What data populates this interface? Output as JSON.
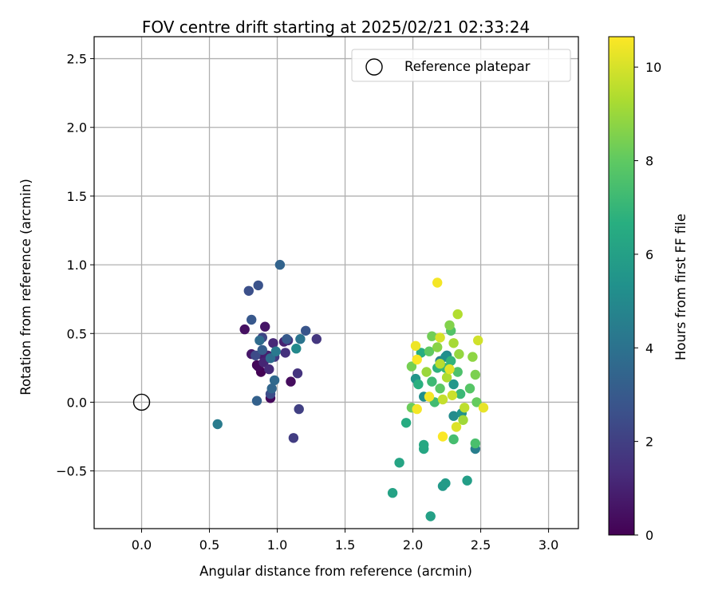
{
  "chart_data": {
    "type": "scatter",
    "title": "FOV centre drift starting at 2025/02/21 02:33:24",
    "xlabel": "Angular distance from reference (arcmin)",
    "ylabel": "Rotation from reference (arcmin)",
    "xlim": [
      -0.35,
      3.22
    ],
    "ylim": [
      -0.92,
      2.66
    ],
    "xticks": [
      "0.0",
      "0.5",
      "1.0",
      "1.5",
      "2.0",
      "2.5",
      "3.0"
    ],
    "yticks": [
      "−0.5",
      "0.0",
      "0.5",
      "1.0",
      "1.5",
      "2.0",
      "2.5"
    ],
    "grid": true,
    "legend": {
      "entries": [
        "Reference platepar"
      ],
      "placement": "top-right"
    },
    "colorbar": {
      "label": "Hours from first FF file",
      "range": [
        0,
        10.65
      ],
      "ticks": [
        "0",
        "2",
        "4",
        "6",
        "8",
        "10"
      ],
      "colormap": "viridis"
    },
    "reference_point": {
      "x": 0.0,
      "y": 0.0
    },
    "points": [
      {
        "x": 0.88,
        "y": 0.22,
        "h": 0.05
      },
      {
        "x": 0.85,
        "y": 0.27,
        "h": 0.1
      },
      {
        "x": 0.86,
        "y": 0.26,
        "h": 0.2
      },
      {
        "x": 0.95,
        "y": 0.03,
        "h": 0.25
      },
      {
        "x": 1.1,
        "y": 0.15,
        "h": 0.35
      },
      {
        "x": 0.76,
        "y": 0.53,
        "h": 0.45
      },
      {
        "x": 0.91,
        "y": 0.55,
        "h": 0.6
      },
      {
        "x": 0.81,
        "y": 0.35,
        "h": 0.7
      },
      {
        "x": 0.88,
        "y": 0.35,
        "h": 0.8
      },
      {
        "x": 0.93,
        "y": 0.34,
        "h": 0.9
      },
      {
        "x": 1.05,
        "y": 0.44,
        "h": 1.0
      },
      {
        "x": 0.9,
        "y": 0.29,
        "h": 1.1
      },
      {
        "x": 0.97,
        "y": 0.43,
        "h": 1.2
      },
      {
        "x": 0.94,
        "y": 0.24,
        "h": 1.3
      },
      {
        "x": 1.08,
        "y": 0.45,
        "h": 1.4
      },
      {
        "x": 1.06,
        "y": 0.36,
        "h": 1.5
      },
      {
        "x": 1.15,
        "y": 0.21,
        "h": 1.6
      },
      {
        "x": 1.29,
        "y": 0.46,
        "h": 1.7
      },
      {
        "x": 0.98,
        "y": 0.33,
        "h": 1.8
      },
      {
        "x": 1.12,
        "y": -0.26,
        "h": 1.9
      },
      {
        "x": 1.16,
        "y": -0.05,
        "h": 2.0
      },
      {
        "x": 0.89,
        "y": 0.47,
        "h": 2.2
      },
      {
        "x": 0.84,
        "y": 0.34,
        "h": 2.4
      },
      {
        "x": 0.95,
        "y": 0.06,
        "h": 2.5
      },
      {
        "x": 0.79,
        "y": 0.81,
        "h": 2.6
      },
      {
        "x": 0.86,
        "y": 0.85,
        "h": 2.7
      },
      {
        "x": 1.21,
        "y": 0.52,
        "h": 2.8
      },
      {
        "x": 0.81,
        "y": 0.6,
        "h": 2.9
      },
      {
        "x": 1.07,
        "y": 0.46,
        "h": 3.0
      },
      {
        "x": 0.89,
        "y": 0.38,
        "h": 3.1
      },
      {
        "x": 0.85,
        "y": 0.01,
        "h": 3.3
      },
      {
        "x": 1.02,
        "y": 1.0,
        "h": 3.4
      },
      {
        "x": 0.96,
        "y": 0.1,
        "h": 3.5
      },
      {
        "x": 0.98,
        "y": 0.16,
        "h": 3.6
      },
      {
        "x": 0.87,
        "y": 0.45,
        "h": 3.7
      },
      {
        "x": 0.95,
        "y": 0.32,
        "h": 3.8
      },
      {
        "x": 1.17,
        "y": 0.46,
        "h": 4.1
      },
      {
        "x": 0.99,
        "y": 0.37,
        "h": 4.3
      },
      {
        "x": 0.56,
        "y": -0.16,
        "h": 4.4
      },
      {
        "x": 2.46,
        "y": -0.34,
        "h": 4.5
      },
      {
        "x": 2.2,
        "y": 0.3,
        "h": 4.7
      },
      {
        "x": 2.25,
        "y": 0.34,
        "h": 4.9
      },
      {
        "x": 1.14,
        "y": 0.39,
        "h": 5.0
      },
      {
        "x": 2.3,
        "y": -0.1,
        "h": 5.1
      },
      {
        "x": 2.08,
        "y": 0.04,
        "h": 5.2
      },
      {
        "x": 2.24,
        "y": 0.33,
        "h": 5.3
      },
      {
        "x": 2.36,
        "y": -0.08,
        "h": 5.4
      },
      {
        "x": 2.02,
        "y": 0.17,
        "h": 5.5
      },
      {
        "x": 2.3,
        "y": 0.13,
        "h": 5.6
      },
      {
        "x": 2.22,
        "y": -0.61,
        "h": 5.7
      },
      {
        "x": 2.24,
        "y": -0.59,
        "h": 5.8
      },
      {
        "x": 2.4,
        "y": -0.57,
        "h": 5.9
      },
      {
        "x": 2.13,
        "y": -0.83,
        "h": 6.0
      },
      {
        "x": 1.85,
        "y": -0.66,
        "h": 6.1
      },
      {
        "x": 1.9,
        "y": -0.44,
        "h": 6.2
      },
      {
        "x": 2.08,
        "y": -0.34,
        "h": 6.3
      },
      {
        "x": 2.08,
        "y": -0.31,
        "h": 6.4
      },
      {
        "x": 1.95,
        "y": -0.15,
        "h": 6.5
      },
      {
        "x": 2.06,
        "y": 0.36,
        "h": 6.6
      },
      {
        "x": 2.04,
        "y": 0.13,
        "h": 6.7
      },
      {
        "x": 2.18,
        "y": 0.25,
        "h": 6.8
      },
      {
        "x": 2.28,
        "y": 0.3,
        "h": 6.9
      },
      {
        "x": 2.24,
        "y": 0.25,
        "h": 7.0
      },
      {
        "x": 2.35,
        "y": 0.06,
        "h": 7.1
      },
      {
        "x": 2.14,
        "y": 0.15,
        "h": 7.2
      },
      {
        "x": 2.16,
        "y": 0.0,
        "h": 7.3
      },
      {
        "x": 2.3,
        "y": -0.27,
        "h": 7.4
      },
      {
        "x": 2.46,
        "y": -0.3,
        "h": 7.5
      },
      {
        "x": 2.33,
        "y": 0.22,
        "h": 7.6
      },
      {
        "x": 2.28,
        "y": 0.52,
        "h": 7.7
      },
      {
        "x": 2.42,
        "y": 0.1,
        "h": 7.8
      },
      {
        "x": 2.2,
        "y": 0.1,
        "h": 7.9
      },
      {
        "x": 2.12,
        "y": 0.37,
        "h": 8.0
      },
      {
        "x": 2.47,
        "y": 0.0,
        "h": 8.1
      },
      {
        "x": 1.99,
        "y": -0.04,
        "h": 8.2
      },
      {
        "x": 2.14,
        "y": 0.48,
        "h": 8.3
      },
      {
        "x": 1.99,
        "y": 0.26,
        "h": 8.4
      },
      {
        "x": 2.46,
        "y": 0.2,
        "h": 8.5
      },
      {
        "x": 2.27,
        "y": 0.56,
        "h": 8.6
      },
      {
        "x": 2.18,
        "y": 0.4,
        "h": 8.7
      },
      {
        "x": 2.44,
        "y": 0.33,
        "h": 8.8
      },
      {
        "x": 2.34,
        "y": 0.35,
        "h": 8.9
      },
      {
        "x": 2.1,
        "y": 0.22,
        "h": 9.0
      },
      {
        "x": 2.37,
        "y": -0.13,
        "h": 9.1
      },
      {
        "x": 2.3,
        "y": 0.43,
        "h": 9.2
      },
      {
        "x": 2.25,
        "y": 0.18,
        "h": 9.3
      },
      {
        "x": 2.33,
        "y": 0.64,
        "h": 9.4
      },
      {
        "x": 2.2,
        "y": 0.28,
        "h": 9.5
      },
      {
        "x": 2.38,
        "y": -0.04,
        "h": 9.6
      },
      {
        "x": 2.22,
        "y": 0.02,
        "h": 9.7
      },
      {
        "x": 2.29,
        "y": 0.05,
        "h": 9.8
      },
      {
        "x": 2.48,
        "y": 0.45,
        "h": 9.9
      },
      {
        "x": 2.2,
        "y": 0.47,
        "h": 10.0
      },
      {
        "x": 2.32,
        "y": -0.18,
        "h": 10.1
      },
      {
        "x": 2.27,
        "y": 0.24,
        "h": 10.2
      },
      {
        "x": 2.52,
        "y": -0.04,
        "h": 10.3
      },
      {
        "x": 2.02,
        "y": 0.41,
        "h": 10.4
      },
      {
        "x": 2.18,
        "y": 0.87,
        "h": 10.5
      },
      {
        "x": 2.22,
        "y": -0.25,
        "h": 10.6
      },
      {
        "x": 2.03,
        "y": 0.31,
        "h": 10.6
      },
      {
        "x": 2.12,
        "y": 0.04,
        "h": 10.5
      },
      {
        "x": 2.03,
        "y": -0.05,
        "h": 10.5
      }
    ]
  }
}
